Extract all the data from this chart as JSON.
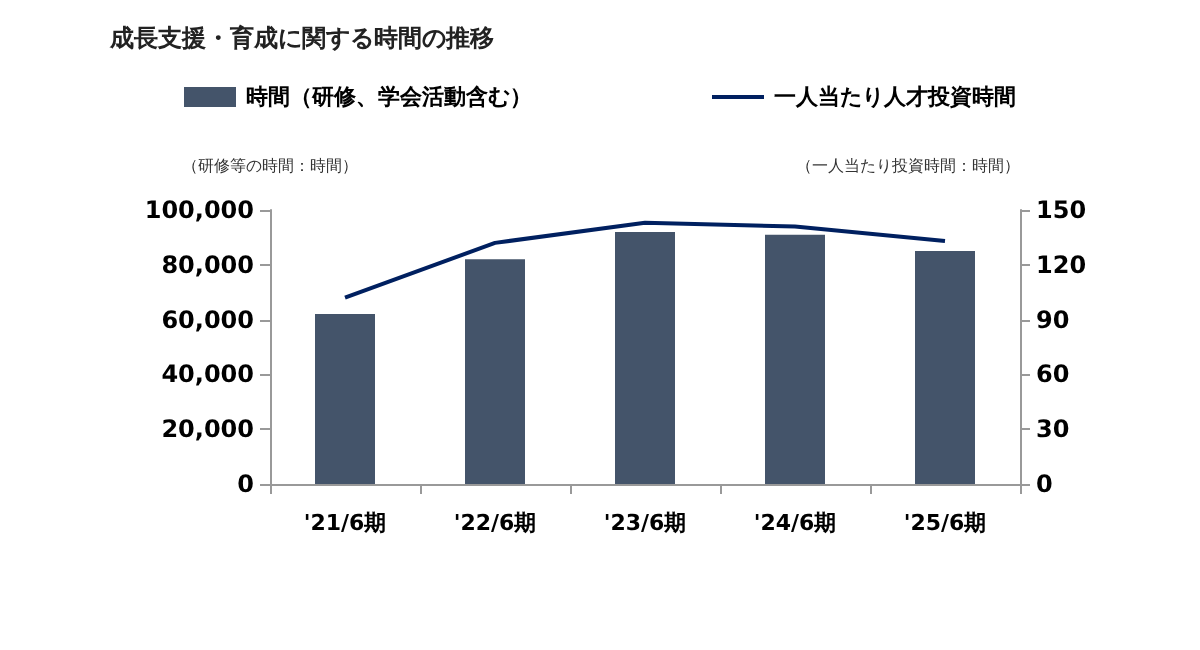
{
  "chart_data": {
    "type": "bar",
    "title": "成長支援・育成に関する時間の推移",
    "ylabel": "（研修等の時間：時間）",
    "y2label": "（一人当たり投資時間：時間）",
    "categories": [
      "'21/6期",
      "'22/6期",
      "'23/6期",
      "'24/6期",
      "'25/6期"
    ],
    "series": [
      {
        "name": "時間（研修、学会活動含む）",
        "color": "#44546a",
        "values": [
          62000,
          82000,
          92000,
          91000,
          85000
        ]
      },
      {
        "name": "一人当たり人才投資時間",
        "type": "line",
        "axis": "y2",
        "color": "#002060",
        "values": [
          102,
          132,
          143,
          141,
          133
        ]
      }
    ],
    "ylim": [
      0,
      100000
    ],
    "yticks": [
      0,
      {
        "value": 20000,
        "label": "20,000"
      },
      {
        "value": 40000,
        "label": "40,000"
      },
      {
        "value": 60000,
        "label": "60,000"
      },
      {
        "value": 80000,
        "label": "80,000"
      },
      {
        "value": 100000,
        "label": "100,000"
      }
    ],
    "y2lim": [
      0,
      150
    ],
    "y2ticks": [
      0,
      30,
      60,
      90,
      120,
      150
    ],
    "grid": false,
    "legend": "top",
    "marker": "none"
  }
}
